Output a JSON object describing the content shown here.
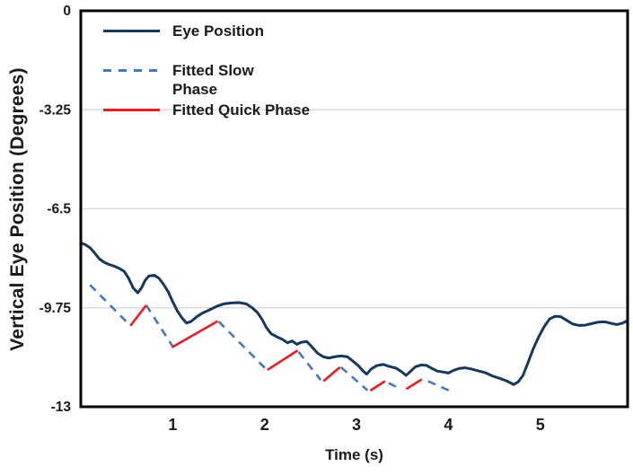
{
  "chart_data": {
    "type": "line",
    "title": "",
    "xlabel": "Time (s)",
    "ylabel": "Vertical Eye Position (Degrees)",
    "xlim": [
      0,
      5.95
    ],
    "ylim": [
      -13,
      0
    ],
    "x_ticks": [
      1,
      2,
      3,
      4,
      5
    ],
    "x_tick_labels": [
      "1",
      "2",
      "3",
      "4",
      "5"
    ],
    "y_ticks": [
      0,
      -3.25,
      -6.5,
      -9.75,
      -13
    ],
    "y_tick_labels": [
      "0",
      "-3.25",
      "-6.5",
      "-9.75",
      "-13"
    ],
    "grid": {
      "horizontal": true,
      "color": "#dcdcdc",
      "at": [
        -3.25,
        -6.5,
        -9.75
      ]
    },
    "legend_position": "top-left-inside",
    "legend": [
      {
        "label": "Eye Position",
        "style": "solid",
        "color": "#17375d"
      },
      {
        "label": "Fitted Slow Phase",
        "style": "dashed",
        "color": "#4577c2"
      },
      {
        "label": "Fitted Quick Phase",
        "style": "solid",
        "color": "#ec1c24"
      }
    ],
    "series": [
      {
        "name": "Eye Position",
        "mode": "polyline",
        "color": "#17375d",
        "width": 3,
        "points": [
          [
            0.0,
            -7.62
          ],
          [
            0.05,
            -7.68
          ],
          [
            0.1,
            -7.78
          ],
          [
            0.15,
            -7.95
          ],
          [
            0.2,
            -8.14
          ],
          [
            0.25,
            -8.25
          ],
          [
            0.3,
            -8.32
          ],
          [
            0.36,
            -8.38
          ],
          [
            0.42,
            -8.46
          ],
          [
            0.47,
            -8.55
          ],
          [
            0.52,
            -8.78
          ],
          [
            0.57,
            -9.1
          ],
          [
            0.62,
            -9.26
          ],
          [
            0.66,
            -9.1
          ],
          [
            0.7,
            -8.85
          ],
          [
            0.74,
            -8.71
          ],
          [
            0.8,
            -8.68
          ],
          [
            0.85,
            -8.78
          ],
          [
            0.9,
            -8.98
          ],
          [
            0.95,
            -9.22
          ],
          [
            1.0,
            -9.55
          ],
          [
            1.05,
            -9.85
          ],
          [
            1.1,
            -10.08
          ],
          [
            1.15,
            -10.25
          ],
          [
            1.2,
            -10.2
          ],
          [
            1.26,
            -10.05
          ],
          [
            1.32,
            -9.93
          ],
          [
            1.4,
            -9.82
          ],
          [
            1.48,
            -9.7
          ],
          [
            1.56,
            -9.62
          ],
          [
            1.64,
            -9.59
          ],
          [
            1.72,
            -9.58
          ],
          [
            1.8,
            -9.62
          ],
          [
            1.86,
            -9.74
          ],
          [
            1.92,
            -9.9
          ],
          [
            1.97,
            -10.12
          ],
          [
            2.02,
            -10.4
          ],
          [
            2.07,
            -10.6
          ],
          [
            2.13,
            -10.7
          ],
          [
            2.19,
            -10.78
          ],
          [
            2.25,
            -10.9
          ],
          [
            2.3,
            -10.84
          ],
          [
            2.35,
            -10.95
          ],
          [
            2.4,
            -10.88
          ],
          [
            2.46,
            -10.86
          ],
          [
            2.52,
            -11.05
          ],
          [
            2.58,
            -11.25
          ],
          [
            2.64,
            -11.36
          ],
          [
            2.7,
            -11.4
          ],
          [
            2.76,
            -11.36
          ],
          [
            2.83,
            -11.33
          ],
          [
            2.9,
            -11.36
          ],
          [
            2.96,
            -11.5
          ],
          [
            3.02,
            -11.65
          ],
          [
            3.07,
            -11.82
          ],
          [
            3.11,
            -11.93
          ],
          [
            3.16,
            -11.76
          ],
          [
            3.22,
            -11.65
          ],
          [
            3.29,
            -11.61
          ],
          [
            3.36,
            -11.68
          ],
          [
            3.43,
            -11.73
          ],
          [
            3.49,
            -11.85
          ],
          [
            3.54,
            -11.97
          ],
          [
            3.59,
            -11.83
          ],
          [
            3.64,
            -11.69
          ],
          [
            3.7,
            -11.63
          ],
          [
            3.76,
            -11.64
          ],
          [
            3.82,
            -11.74
          ],
          [
            3.88,
            -11.83
          ],
          [
            3.94,
            -11.86
          ],
          [
            4.0,
            -11.89
          ],
          [
            4.06,
            -11.8
          ],
          [
            4.12,
            -11.74
          ],
          [
            4.18,
            -11.72
          ],
          [
            4.25,
            -11.76
          ],
          [
            4.32,
            -11.82
          ],
          [
            4.4,
            -11.88
          ],
          [
            4.48,
            -11.99
          ],
          [
            4.56,
            -12.07
          ],
          [
            4.64,
            -12.16
          ],
          [
            4.71,
            -12.27
          ],
          [
            4.76,
            -12.18
          ],
          [
            4.81,
            -11.98
          ],
          [
            4.86,
            -11.6
          ],
          [
            4.92,
            -11.12
          ],
          [
            4.98,
            -10.72
          ],
          [
            5.04,
            -10.38
          ],
          [
            5.1,
            -10.12
          ],
          [
            5.16,
            -10.03
          ],
          [
            5.22,
            -10.04
          ],
          [
            5.28,
            -10.15
          ],
          [
            5.35,
            -10.28
          ],
          [
            5.42,
            -10.33
          ],
          [
            5.49,
            -10.32
          ],
          [
            5.56,
            -10.27
          ],
          [
            5.63,
            -10.22
          ],
          [
            5.7,
            -10.21
          ],
          [
            5.77,
            -10.26
          ],
          [
            5.83,
            -10.3
          ],
          [
            5.89,
            -10.26
          ],
          [
            5.95,
            -10.17
          ]
        ]
      },
      {
        "name": "Fitted Slow Phase",
        "mode": "segments",
        "color": "#4577c2",
        "width": 2.6,
        "dash": "9 7",
        "segments": [
          [
            [
              0.1,
              -9.0
            ],
            [
              0.54,
              -10.34
            ]
          ],
          [
            [
              0.71,
              -9.66
            ],
            [
              1.0,
              -11.02
            ]
          ],
          [
            [
              1.5,
              -10.2
            ],
            [
              2.02,
              -11.78
            ]
          ],
          [
            [
              2.37,
              -11.2
            ],
            [
              2.61,
              -12.12
            ]
          ],
          [
            [
              2.83,
              -11.7
            ],
            [
              3.12,
              -12.46
            ]
          ],
          [
            [
              3.35,
              -12.22
            ],
            [
              3.48,
              -12.42
            ]
          ],
          [
            [
              3.78,
              -12.16
            ],
            [
              4.01,
              -12.47
            ]
          ]
        ]
      },
      {
        "name": "Fitted Quick Phase",
        "mode": "segments",
        "color": "#ec1c24",
        "width": 2.6,
        "dash": null,
        "segments": [
          [
            [
              0.54,
              -10.34
            ],
            [
              0.71,
              -9.67
            ]
          ],
          [
            [
              0.99,
              -11.05
            ],
            [
              1.49,
              -10.19
            ]
          ],
          [
            [
              2.03,
              -11.79
            ],
            [
              2.36,
              -11.15
            ]
          ],
          [
            [
              2.64,
              -12.16
            ],
            [
              2.82,
              -11.7
            ]
          ],
          [
            [
              3.15,
              -12.47
            ],
            [
              3.31,
              -12.16
            ]
          ],
          [
            [
              3.54,
              -12.42
            ],
            [
              3.71,
              -12.1
            ]
          ]
        ]
      }
    ]
  },
  "colors": {
    "axis_border": "#000000",
    "tick_text": "#1a1a1a",
    "background": "#ffffff"
  }
}
